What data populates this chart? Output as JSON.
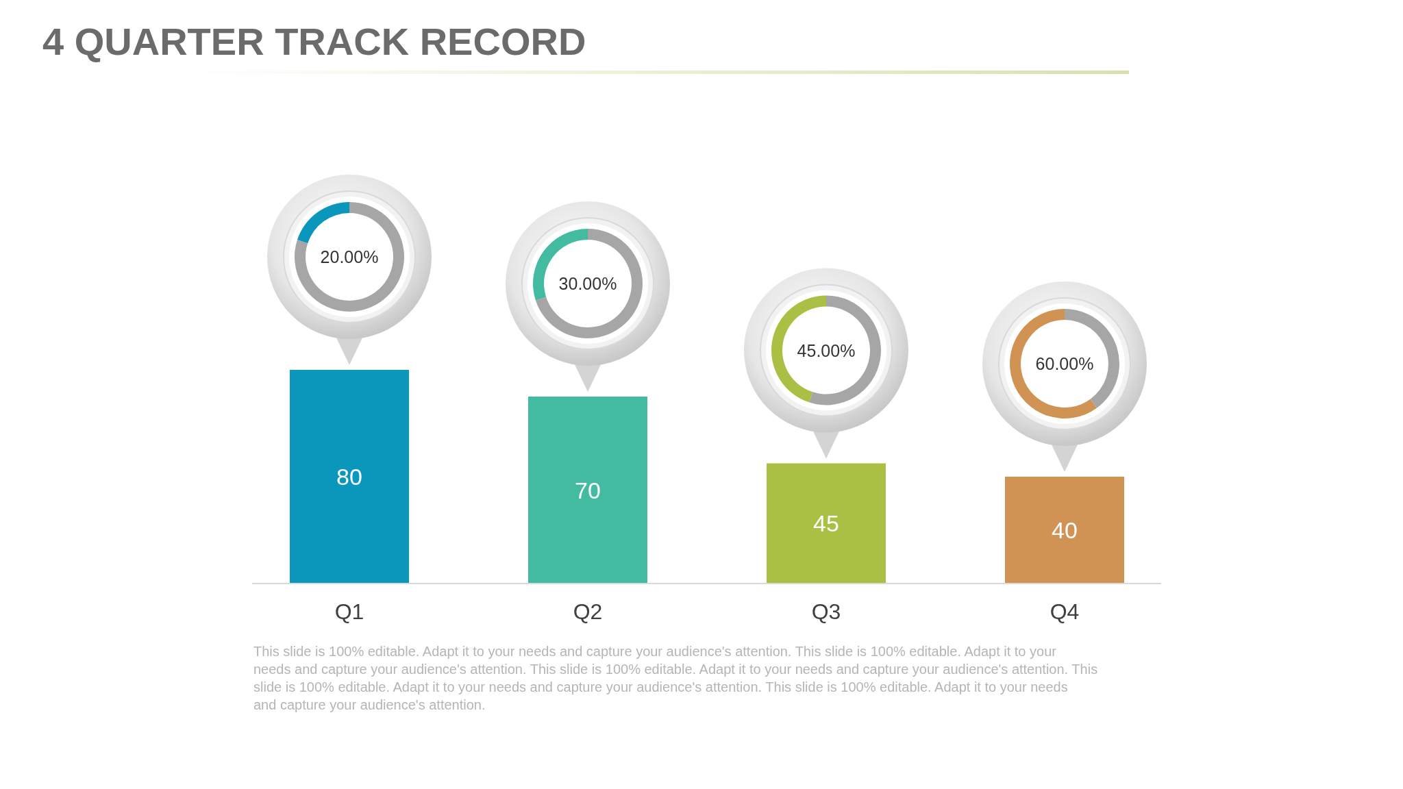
{
  "chart_data": [
    {
      "type": "bar",
      "title": "4 QUARTER TRACK RECORD",
      "categories": [
        "Q1",
        "Q2",
        "Q3",
        "Q4"
      ],
      "values": [
        80,
        70,
        45,
        40
      ],
      "colors": [
        "#0b97bb",
        "#42bba0",
        "#a9c045",
        "#d09354"
      ],
      "data_labels": true,
      "annotations": [
        "This slide is 100% editable. Adapt it to your needs and capture your audience's attention. This slide is 100% editable. Adapt it to your needs and capture your audience's attention. This slide is 100% editable. Adapt it to your needs and capture your audience's attention. This slide is 100% editable. Adapt it to your needs and capture your audience's attention. This slide is 100% editable. Adapt it to your needs and capture your audience's attention."
      ]
    },
    {
      "type": "donut",
      "categories": [
        null,
        null
      ],
      "values": [
        20,
        80
      ],
      "colors": [
        "#0b97bb",
        "#a6a6a6"
      ],
      "annotations": [
        "20.00%"
      ]
    },
    {
      "type": "donut",
      "categories": [
        null,
        null
      ],
      "values": [
        30,
        70
      ],
      "colors": [
        "#42bba0",
        "#a6a6a6"
      ],
      "annotations": [
        "30.00%"
      ]
    },
    {
      "type": "donut",
      "categories": [
        null,
        null
      ],
      "values": [
        45,
        55
      ],
      "colors": [
        "#a9c045",
        "#a6a6a6"
      ],
      "annotations": [
        "45.00%"
      ]
    },
    {
      "type": "donut",
      "categories": [
        null,
        null
      ],
      "values": [
        60,
        40
      ],
      "colors": [
        "#d09354",
        "#a6a6a6"
      ],
      "annotations": [
        "60.00%"
      ]
    }
  ]
}
